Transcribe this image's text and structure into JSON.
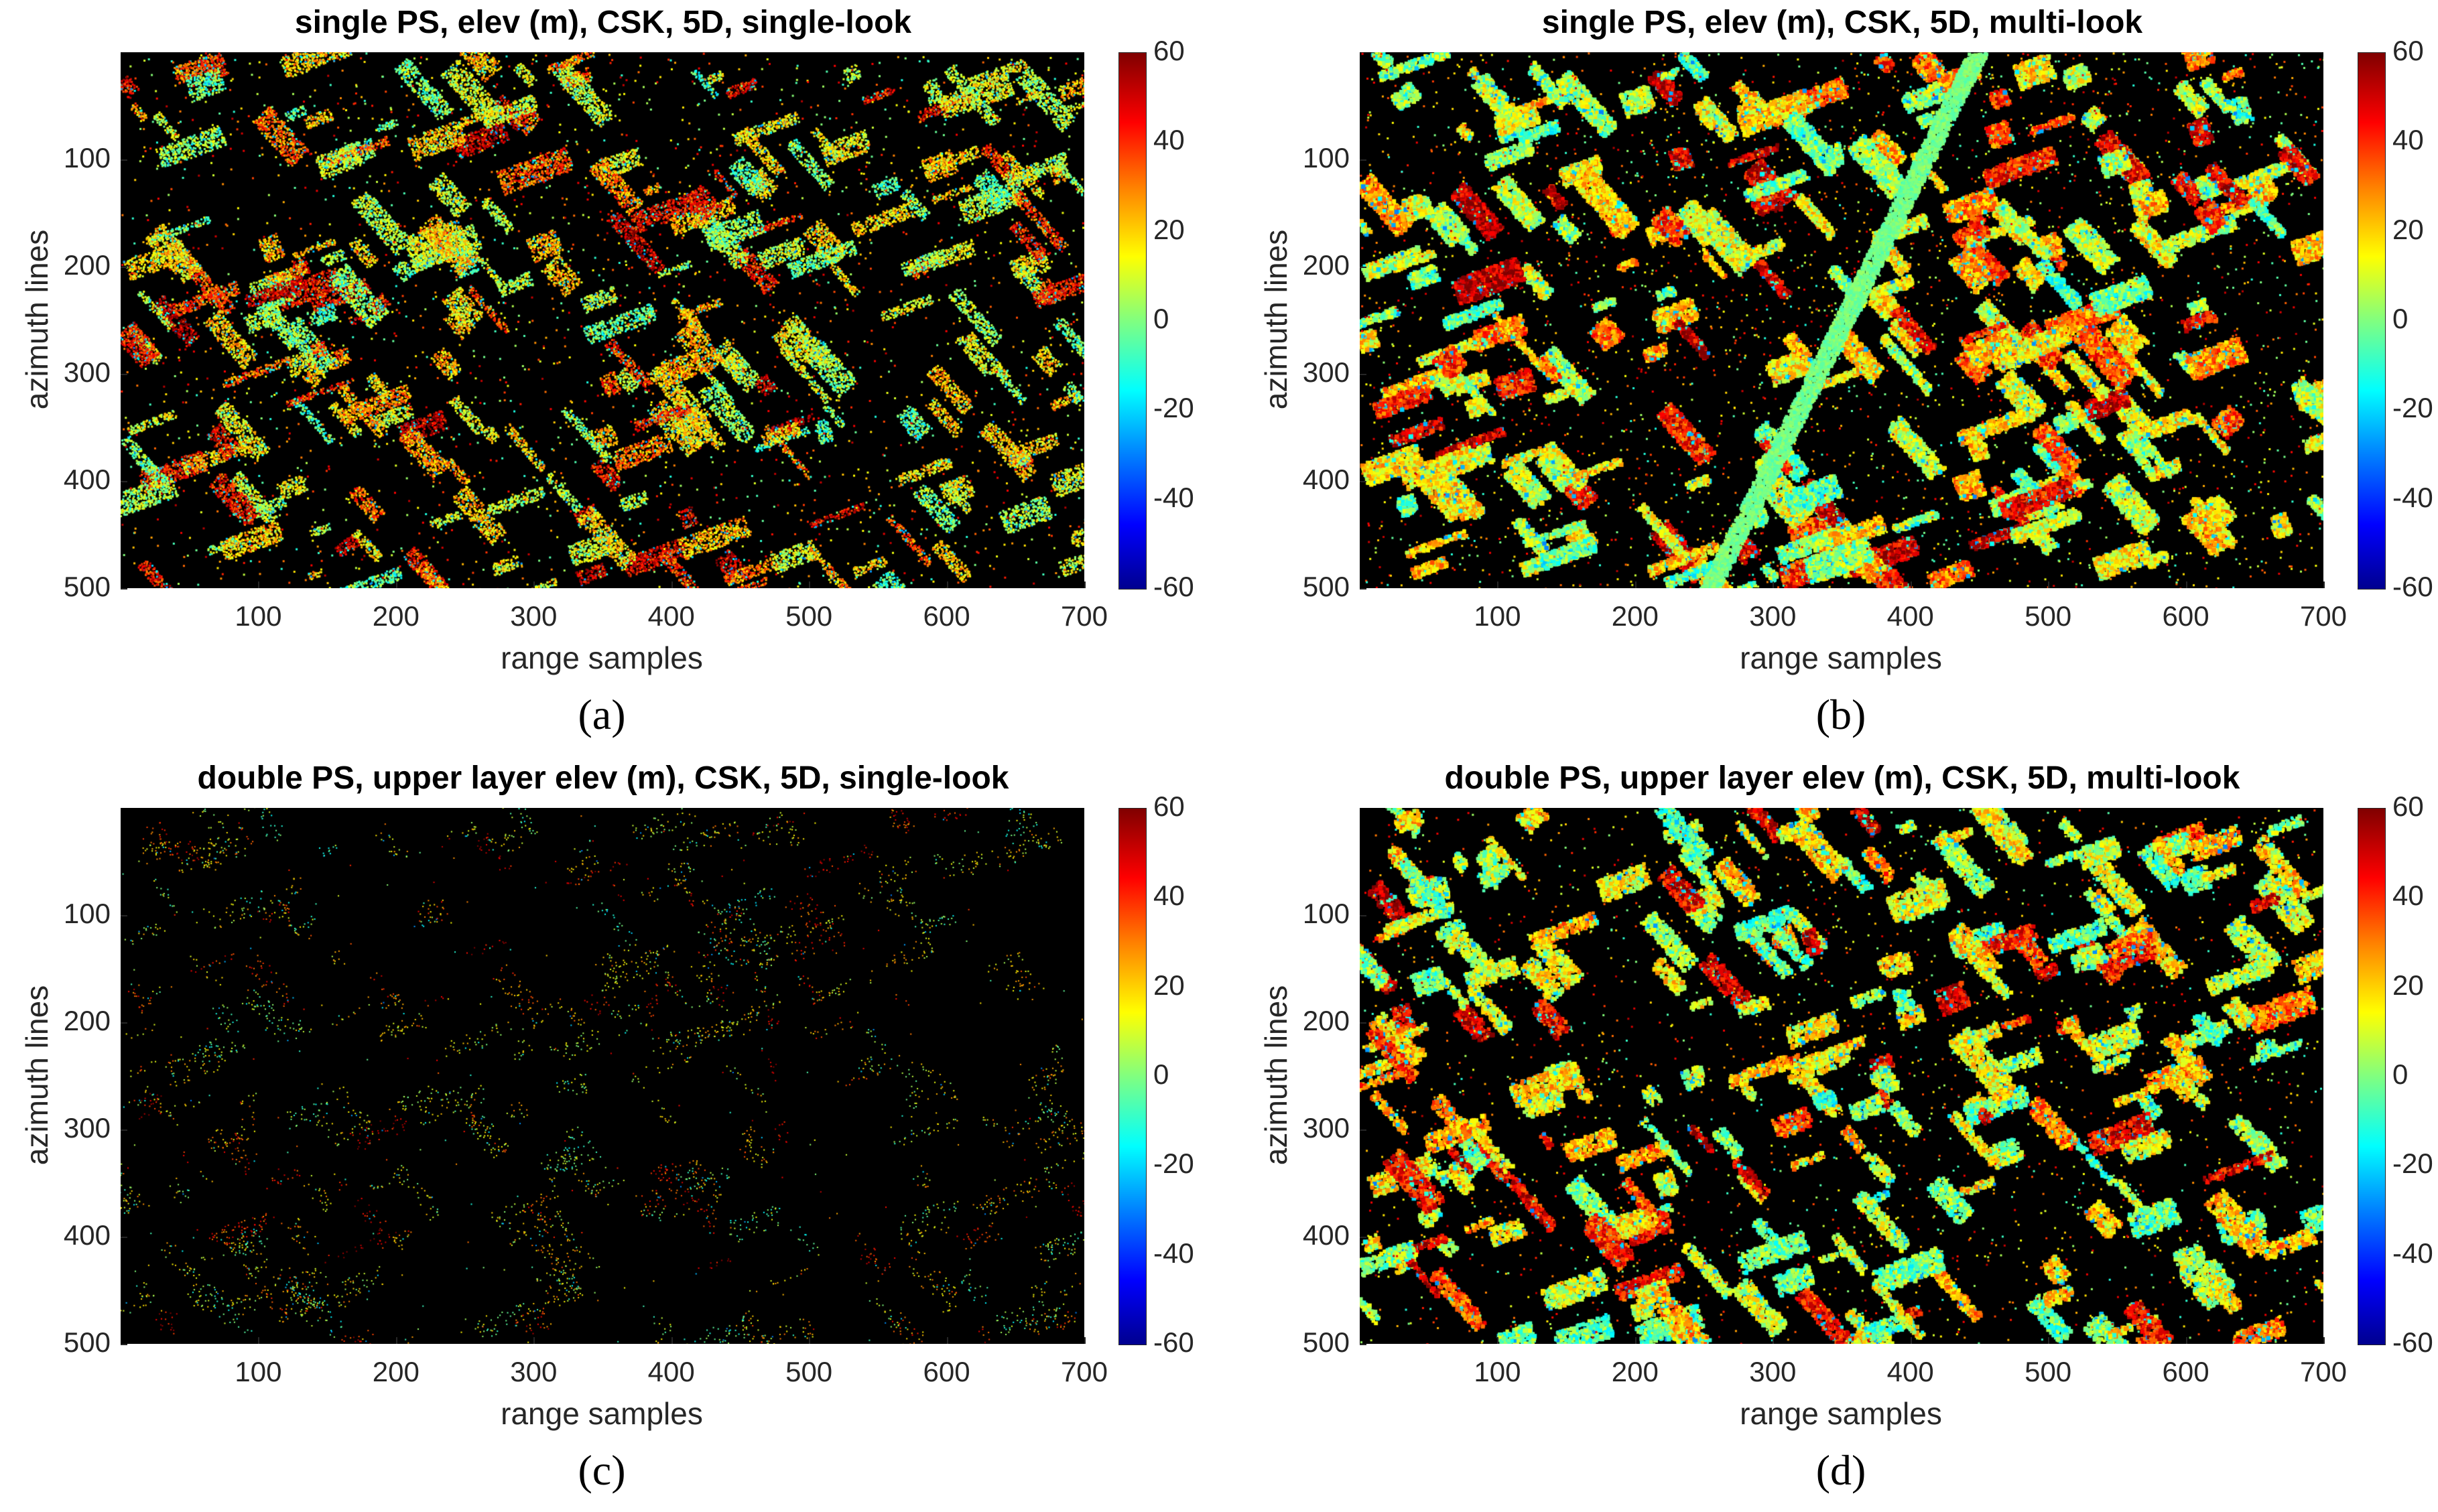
{
  "panels": [
    {
      "title": "single PS, elev (m), CSK, 5D, single-look",
      "sublabel": "(a)"
    },
    {
      "title": "single PS, elev (m), CSK, 5D, multi-look",
      "sublabel": "(b)"
    },
    {
      "title": "double PS, upper layer elev (m), CSK, 5D, single-look",
      "sublabel": "(c)"
    },
    {
      "title": "double PS, upper layer elev (m), CSK, 5D, multi-look",
      "sublabel": "(d)"
    }
  ],
  "chart_data": [
    {
      "type": "heatmap",
      "title": "single PS, elev (m), CSK, 5D, single-look",
      "xlabel": "range samples",
      "ylabel": "azimuth lines",
      "xticks": [
        100,
        200,
        300,
        400,
        500,
        600,
        700
      ],
      "yticks": [
        100,
        200,
        300,
        400,
        500
      ],
      "xlim": [
        0,
        700
      ],
      "ylim": [
        0,
        500
      ],
      "colorbar": {
        "ticks": [
          60,
          40,
          20,
          0,
          -20,
          -40,
          -60
        ],
        "range": [
          -60,
          60
        ],
        "colormap": "jet"
      },
      "density": 0.35
    },
    {
      "type": "heatmap",
      "title": "single PS, elev (m), CSK, 5D, multi-look",
      "xlabel": "range samples",
      "ylabel": "azimuth lines",
      "xticks": [
        100,
        200,
        300,
        400,
        500,
        600,
        700
      ],
      "yticks": [
        100,
        200,
        300,
        400,
        500
      ],
      "xlim": [
        0,
        700
      ],
      "ylim": [
        0,
        500
      ],
      "colorbar": {
        "ticks": [
          60,
          40,
          20,
          0,
          -20,
          -40,
          -60
        ],
        "range": [
          -60,
          60
        ],
        "colormap": "jet"
      },
      "density": 0.45
    },
    {
      "type": "heatmap",
      "title": "double PS, upper layer elev (m), CSK, 5D, single-look",
      "xlabel": "range samples",
      "ylabel": "azimuth lines",
      "xticks": [
        100,
        200,
        300,
        400,
        500,
        600,
        700
      ],
      "yticks": [
        100,
        200,
        300,
        400,
        500
      ],
      "xlim": [
        0,
        700
      ],
      "ylim": [
        0,
        500
      ],
      "colorbar": {
        "ticks": [
          60,
          40,
          20,
          0,
          -20,
          -40,
          -60
        ],
        "range": [
          -60,
          60
        ],
        "colormap": "jet"
      },
      "density": 0.04
    },
    {
      "type": "heatmap",
      "title": "double PS, upper layer elev (m), CSK, 5D, multi-look",
      "xlabel": "range samples",
      "ylabel": "azimuth lines",
      "xticks": [
        100,
        200,
        300,
        400,
        500,
        600,
        700
      ],
      "yticks": [
        100,
        200,
        300,
        400,
        500
      ],
      "xlim": [
        0,
        700
      ],
      "ylim": [
        0,
        500
      ],
      "colorbar": {
        "ticks": [
          60,
          40,
          20,
          0,
          -20,
          -40,
          -60
        ],
        "range": [
          -60,
          60
        ],
        "colormap": "jet"
      },
      "density": 0.3
    }
  ]
}
